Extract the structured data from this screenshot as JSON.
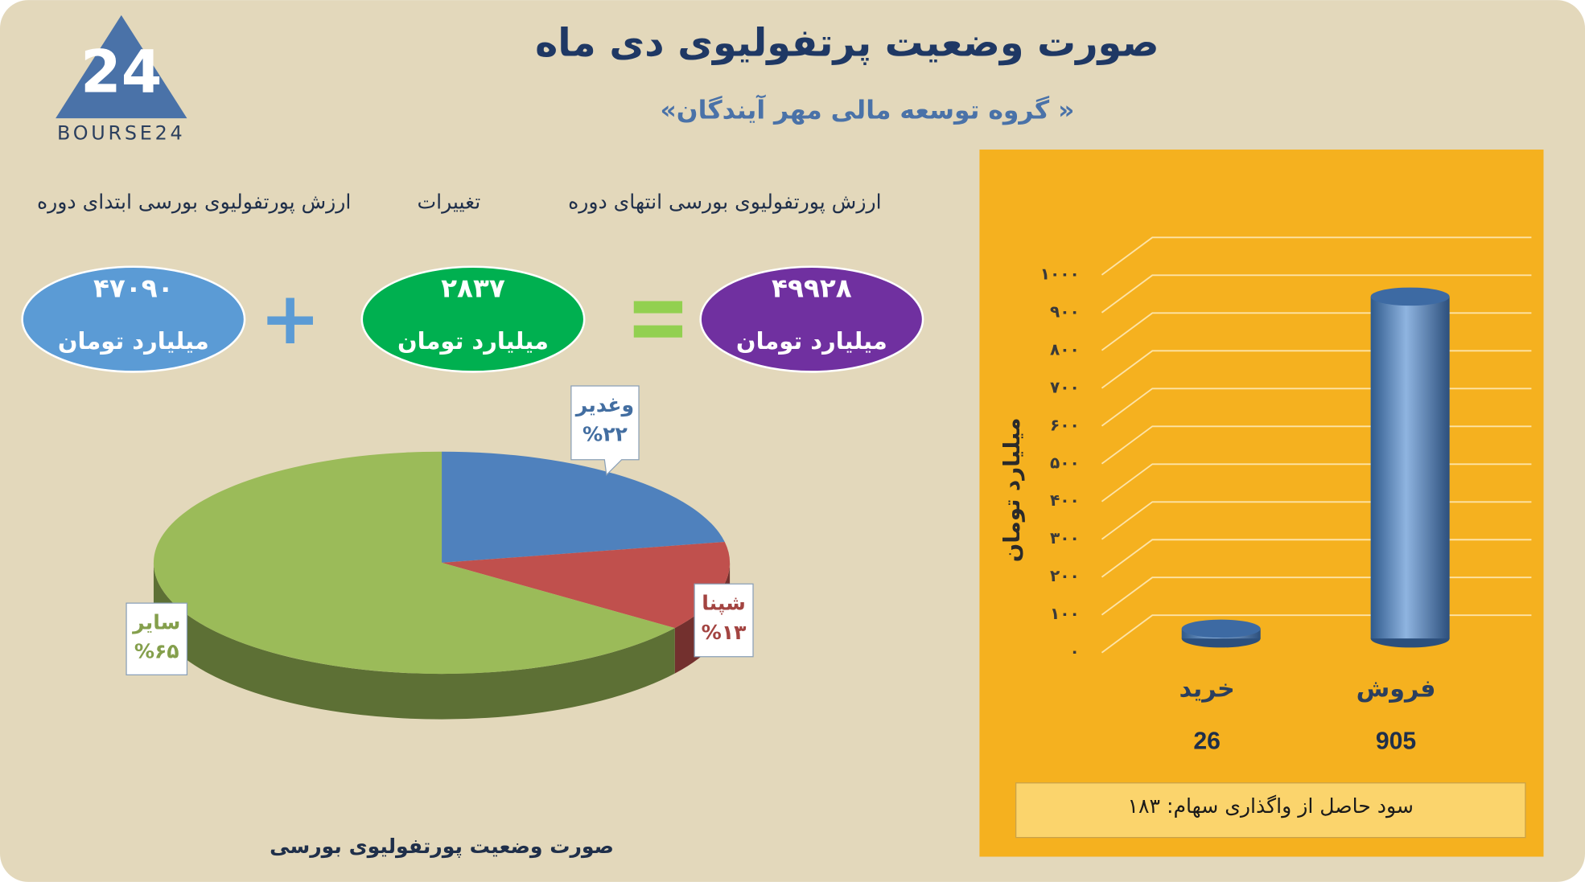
{
  "header": {
    "title": "صورت وضعیت پرتفولیوی دی ماه",
    "subtitle": "«گروه توسعه مالی مهر آیندگان »"
  },
  "logo": {
    "mark": "24",
    "text": "BOURSE24"
  },
  "equation": {
    "items": [
      {
        "label": "ارزش پورتفولیوی بورسی ابتدای دوره",
        "value": "۴۷۰۹۰",
        "unit": "میلیارد تومان"
      },
      {
        "label": "تغییرات",
        "value": "۲۸۳۷",
        "unit": "میلیارد تومان"
      },
      {
        "label": "ارزش پورتفولیوی بورسی انتهای دوره",
        "value": "۴۹۹۲۸",
        "unit": "میلیارد تومان"
      }
    ]
  },
  "chart_data": [
    {
      "type": "pie",
      "title": "صورت وضعیت پورتفولیوی بورسی",
      "categories": [
        "وغدیر",
        "شپنا",
        "سایر"
      ],
      "values": [
        22,
        13,
        65
      ],
      "value_labels": [
        "%۲۲",
        "%۱۳",
        "%۶۵"
      ],
      "colors": [
        "#4f81bd",
        "#c0504d",
        "#9bbb59"
      ]
    },
    {
      "type": "bar",
      "categories": [
        "خرید",
        "فروش"
      ],
      "values": [
        26,
        905
      ],
      "color": "#4f81bd",
      "y_label": "میلیارد تومان",
      "ylim": [
        0,
        1000
      ],
      "yticks": [
        {
          "value": 0,
          "label": "۰"
        },
        {
          "value": 100,
          "label": "۱۰۰"
        },
        {
          "value": 200,
          "label": "۲۰۰"
        },
        {
          "value": 300,
          "label": "۳۰۰"
        },
        {
          "value": 400,
          "label": "۴۰۰"
        },
        {
          "value": 500,
          "label": "۵۰۰"
        },
        {
          "value": 600,
          "label": "۶۰۰"
        },
        {
          "value": 700,
          "label": "۷۰۰"
        },
        {
          "value": 800,
          "label": "۸۰۰"
        },
        {
          "value": 900,
          "label": "۹۰۰"
        },
        {
          "value": 1000,
          "label": "۱۰۰۰"
        }
      ],
      "grid": true,
      "annotation": "سود حاصل از واگذاری سهام: ۱۸۳"
    }
  ]
}
